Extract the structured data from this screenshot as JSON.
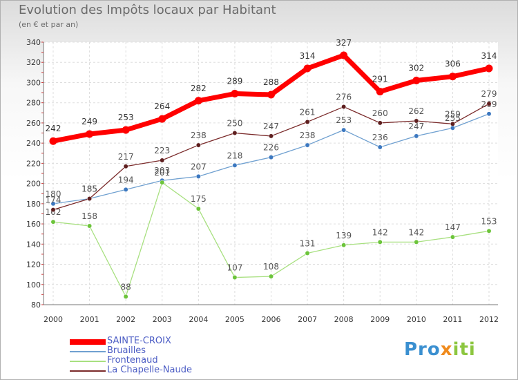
{
  "chart_data": {
    "type": "line",
    "title": "Evolution des Impôts locaux par Habitant",
    "subtitle": "(en € et par an)",
    "x": [
      "2000",
      "2001",
      "2002",
      "2003",
      "2004",
      "2005",
      "2006",
      "2007",
      "2008",
      "2009",
      "2010",
      "2011",
      "2012"
    ],
    "ylim": [
      80,
      340
    ],
    "yticks": [
      80,
      100,
      120,
      140,
      160,
      180,
      200,
      220,
      240,
      260,
      280,
      300,
      320,
      340
    ],
    "grid": true,
    "legend_position": "bottom-left",
    "series": [
      {
        "name": "SAINTE-CROIX",
        "color": "#ff0000",
        "values": [
          242,
          249,
          253,
          264,
          282,
          289,
          288,
          314,
          327,
          291,
          302,
          306,
          314
        ]
      },
      {
        "name": "Bruailles",
        "color": "#6fa0d0",
        "values": [
          180,
          185,
          194,
          203,
          207,
          218,
          226,
          238,
          253,
          236,
          247,
          255,
          269
        ]
      },
      {
        "name": "Frontenaud",
        "color": "#a8e080",
        "values": [
          162,
          158,
          88,
          201,
          175,
          107,
          108,
          131,
          139,
          142,
          142,
          147,
          153
        ]
      },
      {
        "name": "La Chapelle-Naude",
        "color": "#7a2a2a",
        "values": [
          174,
          185,
          217,
          223,
          238,
          250,
          247,
          261,
          276,
          260,
          262,
          259,
          279
        ]
      }
    ]
  },
  "logo": {
    "part1": "Pro",
    "part2": "x",
    "part3": "iti"
  }
}
